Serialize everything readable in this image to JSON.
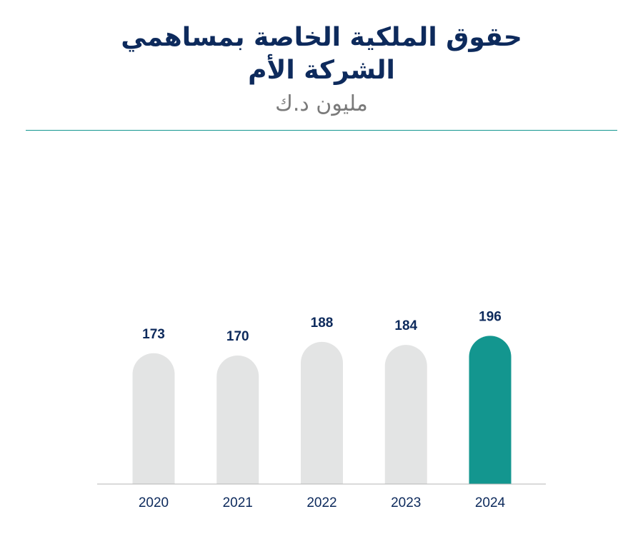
{
  "chart_data": {
    "type": "bar",
    "title_lines": [
      "حقوق الملكية الخاصة بمساهمي",
      "الشركة الأم"
    ],
    "subtitle": "مليون د.ك",
    "categories": [
      "2020",
      "2021",
      "2022",
      "2023",
      "2024"
    ],
    "values": [
      173,
      170,
      188,
      184,
      196
    ],
    "ylim": [
      0,
      196
    ],
    "colors": {
      "default_bar": "#e3e4e4",
      "highlight_bar": "#13968f",
      "highlight_index": 4,
      "text": "#0d2a5c",
      "subtitle": "#7a7a7a",
      "axis": "#b5b5b5"
    },
    "legend": "none",
    "grid": false
  }
}
